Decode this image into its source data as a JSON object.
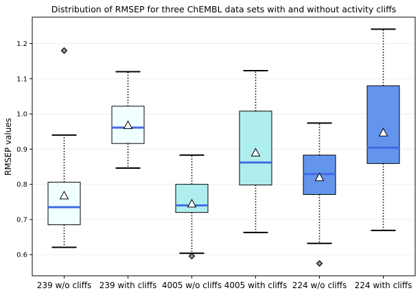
{
  "chart_data": {
    "type": "box",
    "title": "Distribution of RMSEP for three ChEMBL data sets with and without activity cliffs",
    "xlabel": "",
    "ylabel": "RMSEP values",
    "ylim": [
      0.54,
      1.275
    ],
    "yticks": [
      0.6,
      0.7,
      0.8,
      0.9,
      1.0,
      1.1,
      1.2
    ],
    "ytick_labels": [
      "0.6",
      "0.7",
      "0.8",
      "0.9",
      "1.0",
      "1.1",
      "1.2"
    ],
    "grid": "horizontal",
    "categories": [
      "239 w/o cliffs",
      "239 with cliffs",
      "4005 w/o cliffs",
      "4005 with cliffs",
      "224 w/o cliffs",
      "224 with cliffs"
    ],
    "boxes": [
      {
        "label": "239 w/o cliffs",
        "whisker_low": 0.621,
        "q1": 0.685,
        "median": 0.735,
        "q3": 0.806,
        "whisker_high": 0.94,
        "mean": 0.768,
        "outliers": [
          1.18
        ],
        "fill": "#f0ffff"
      },
      {
        "label": "239 with cliffs",
        "whisker_low": 0.846,
        "q1": 0.916,
        "median": 0.961,
        "q3": 1.022,
        "whisker_high": 1.12,
        "mean": 0.968,
        "outliers": [],
        "fill": "#f0ffff"
      },
      {
        "label": "4005 w/o cliffs",
        "whisker_low": 0.604,
        "q1": 0.72,
        "median": 0.74,
        "q3": 0.8,
        "whisker_high": 0.883,
        "mean": 0.745,
        "outliers": [
          0.596
        ],
        "fill": "#afeeee"
      },
      {
        "label": "4005 with cliffs",
        "whisker_low": 0.663,
        "q1": 0.798,
        "median": 0.862,
        "q3": 1.008,
        "whisker_high": 1.123,
        "mean": 0.89,
        "outliers": [],
        "fill": "#afeeee"
      },
      {
        "label": "224 w/o cliffs",
        "whisker_low": 0.632,
        "q1": 0.771,
        "median": 0.829,
        "q3": 0.883,
        "whisker_high": 0.974,
        "mean": 0.82,
        "outliers": [
          0.575
        ],
        "fill": "#6495ed"
      },
      {
        "label": "224 with cliffs",
        "whisker_low": 0.669,
        "q1": 0.859,
        "median": 0.904,
        "q3": 1.08,
        "whisker_high": 1.241,
        "mean": 0.947,
        "outliers": [],
        "fill": "#6495ed"
      }
    ],
    "colors": {
      "median": "#4169e1",
      "outline": "#000000",
      "grid": "#eeeeee",
      "flier": "#555555"
    }
  }
}
